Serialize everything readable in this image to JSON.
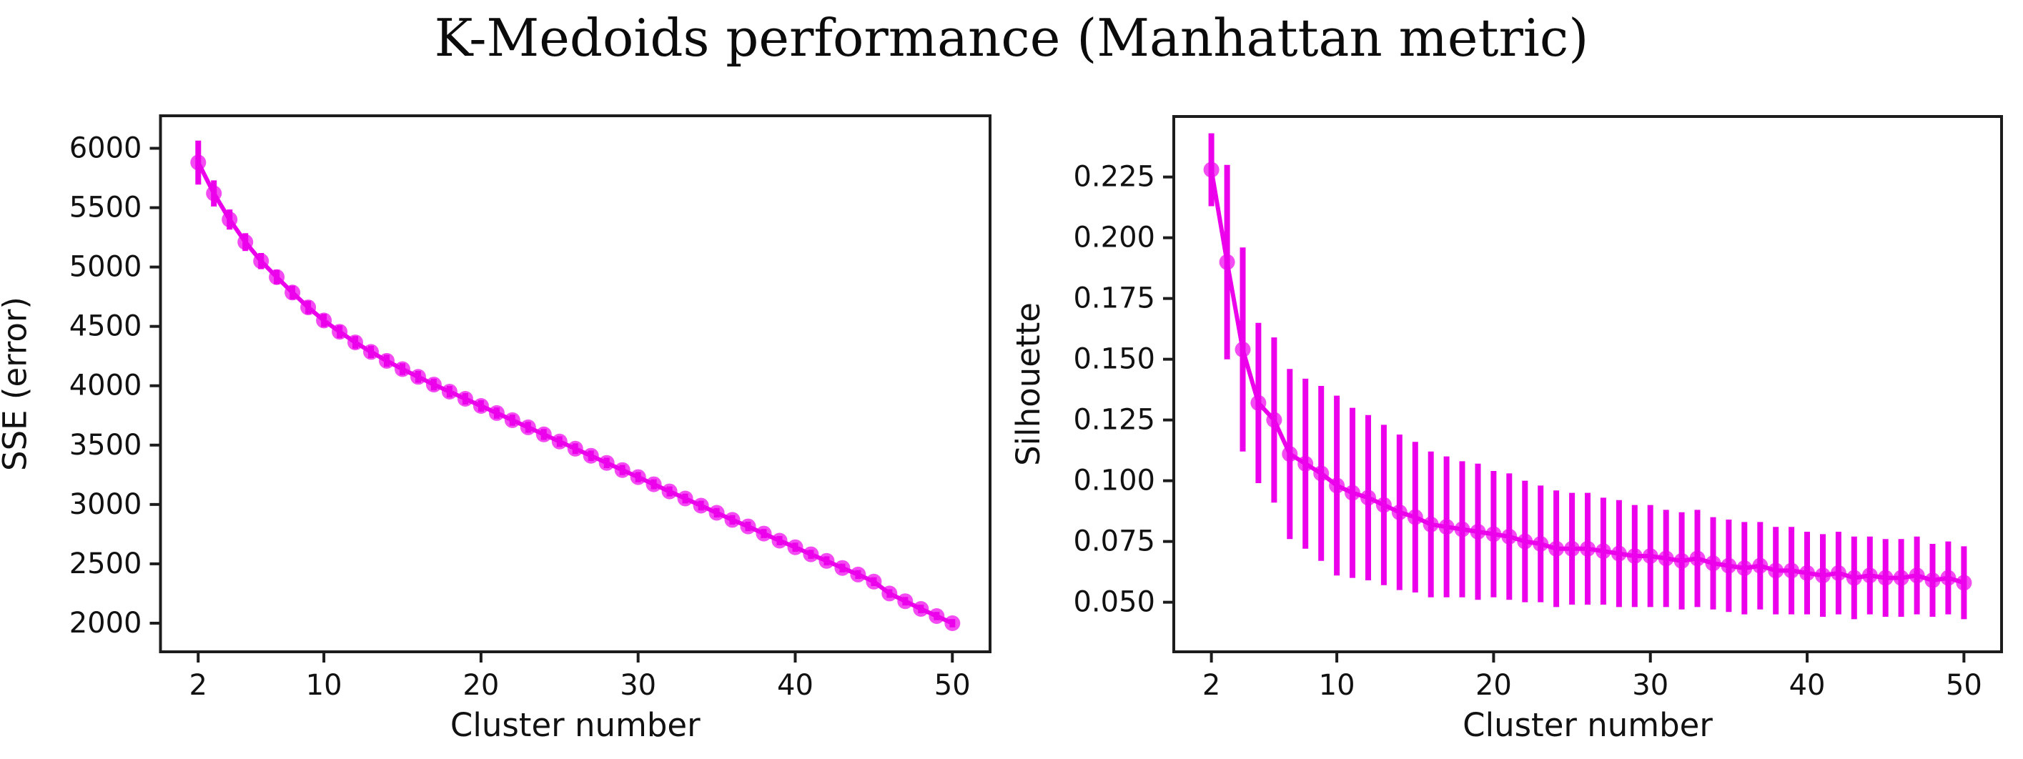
{
  "title": "K-Medoids performance (Manhattan metric)",
  "colors": {
    "series": "#EC00EC",
    "marker_fill": "#EC00EC",
    "error_bar": "#EC00EC",
    "axis": "#1c1c1c",
    "text": "#111111",
    "background": "#ffffff"
  },
  "chart_data": [
    {
      "type": "line",
      "name": "sse-subplot",
      "xlabel": "Cluster number",
      "ylabel": "SSE (error)",
      "legend": "none",
      "grid": false,
      "xlim": [
        -0.4,
        52.4
      ],
      "ylim": [
        1759,
        6274
      ],
      "xticks": [
        2,
        10,
        20,
        30,
        40,
        50
      ],
      "xtick_labels": [
        "2",
        "10",
        "20",
        "30",
        "40",
        "50"
      ],
      "yticks": [
        2000,
        2500,
        3000,
        3500,
        4000,
        4500,
        5000,
        5500,
        6000
      ],
      "ytick_labels": [
        "2000",
        "2500",
        "3000",
        "3500",
        "4000",
        "4500",
        "5000",
        "5500",
        "6000"
      ],
      "x": [
        2,
        3,
        4,
        5,
        6,
        7,
        8,
        9,
        10,
        11,
        12,
        13,
        14,
        15,
        16,
        17,
        18,
        19,
        20,
        21,
        22,
        23,
        24,
        25,
        26,
        27,
        28,
        29,
        30,
        31,
        32,
        33,
        34,
        35,
        36,
        37,
        38,
        39,
        40,
        41,
        42,
        43,
        44,
        45,
        46,
        47,
        48,
        49,
        50
      ],
      "series": [
        {
          "name": "SSE",
          "values": [
            5880,
            5620,
            5400,
            5210,
            5050,
            4915,
            4785,
            4660,
            4550,
            4455,
            4365,
            4285,
            4210,
            4140,
            4075,
            4010,
            3950,
            3890,
            3830,
            3770,
            3710,
            3650,
            3590,
            3530,
            3470,
            3410,
            3350,
            3290,
            3230,
            3170,
            3110,
            3050,
            2990,
            2930,
            2870,
            2815,
            2755,
            2695,
            2640,
            2580,
            2525,
            2465,
            2410,
            2350,
            2250,
            2185,
            2120,
            2060,
            2000
          ],
          "errors": [
            185,
            110,
            85,
            75,
            68,
            62,
            58,
            56,
            55,
            54,
            53,
            52,
            51,
            50,
            50,
            49,
            49,
            48,
            48,
            47,
            47,
            46,
            46,
            45,
            45,
            44,
            44,
            43,
            43,
            42,
            42,
            41,
            41,
            40,
            40,
            40,
            39,
            39,
            38,
            38,
            38,
            37,
            37,
            37,
            36,
            36,
            36,
            35,
            35
          ]
        }
      ]
    },
    {
      "type": "line",
      "name": "silhouette-subplot",
      "xlabel": "Cluster number",
      "ylabel": "Silhouette",
      "legend": "none",
      "grid": false,
      "xlim": [
        -0.4,
        52.4
      ],
      "ylim": [
        0.0296,
        0.2499
      ],
      "xticks": [
        2,
        10,
        20,
        30,
        40,
        50
      ],
      "xtick_labels": [
        "2",
        "10",
        "20",
        "30",
        "40",
        "50"
      ],
      "yticks": [
        0.05,
        0.075,
        0.1,
        0.125,
        0.15,
        0.175,
        0.2,
        0.225
      ],
      "ytick_labels": [
        "0.050",
        "0.075",
        "0.100",
        "0.125",
        "0.150",
        "0.175",
        "0.200",
        "0.225"
      ],
      "x": [
        2,
        3,
        4,
        5,
        6,
        7,
        8,
        9,
        10,
        11,
        12,
        13,
        14,
        15,
        16,
        17,
        18,
        19,
        20,
        21,
        22,
        23,
        24,
        25,
        26,
        27,
        28,
        29,
        30,
        31,
        32,
        33,
        34,
        35,
        36,
        37,
        38,
        39,
        40,
        41,
        42,
        43,
        44,
        45,
        46,
        47,
        48,
        49,
        50
      ],
      "series": [
        {
          "name": "Silhouette",
          "values": [
            0.228,
            0.19,
            0.154,
            0.132,
            0.125,
            0.111,
            0.107,
            0.103,
            0.098,
            0.095,
            0.093,
            0.09,
            0.087,
            0.085,
            0.082,
            0.081,
            0.08,
            0.079,
            0.078,
            0.077,
            0.075,
            0.074,
            0.072,
            0.072,
            0.072,
            0.071,
            0.07,
            0.069,
            0.069,
            0.068,
            0.067,
            0.068,
            0.066,
            0.065,
            0.064,
            0.065,
            0.063,
            0.063,
            0.062,
            0.061,
            0.062,
            0.06,
            0.061,
            0.06,
            0.06,
            0.061,
            0.059,
            0.06,
            0.058
          ],
          "errors": [
            0.015,
            0.04,
            0.042,
            0.033,
            0.034,
            0.035,
            0.035,
            0.036,
            0.037,
            0.035,
            0.034,
            0.033,
            0.032,
            0.031,
            0.03,
            0.029,
            0.028,
            0.028,
            0.026,
            0.026,
            0.025,
            0.024,
            0.024,
            0.023,
            0.023,
            0.022,
            0.022,
            0.021,
            0.021,
            0.02,
            0.02,
            0.02,
            0.019,
            0.019,
            0.019,
            0.018,
            0.018,
            0.018,
            0.017,
            0.017,
            0.017,
            0.017,
            0.016,
            0.016,
            0.016,
            0.016,
            0.015,
            0.015,
            0.015
          ]
        }
      ]
    }
  ]
}
